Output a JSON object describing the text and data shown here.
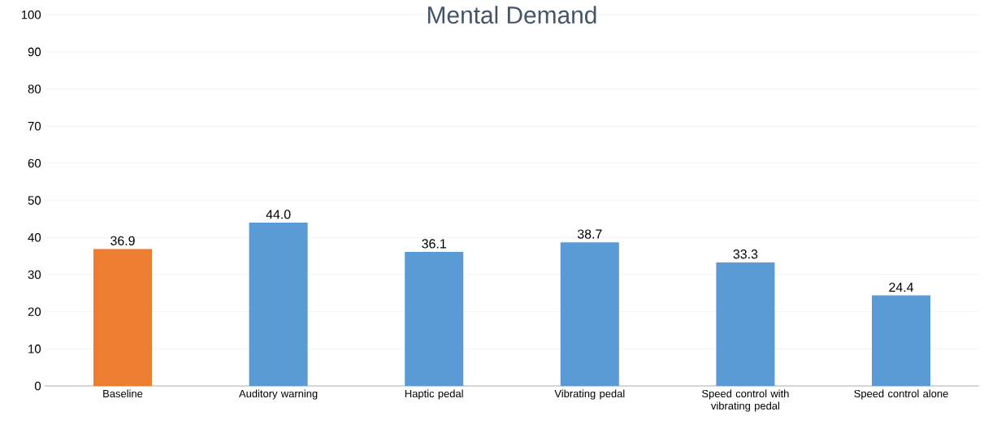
{
  "chart_data": {
    "type": "bar",
    "title": "Mental Demand",
    "categories": [
      "Baseline",
      "Auditory warning",
      "Haptic pedal",
      "Vibrating pedal",
      "Speed control with vibrating pedal",
      "Speed control alone"
    ],
    "values": [
      36.9,
      44.0,
      36.1,
      38.7,
      33.3,
      24.4
    ],
    "value_labels": [
      "36.9",
      "44.0",
      "36.1",
      "38.7",
      "33.3",
      "24.4"
    ],
    "colors": [
      "#ed7d31",
      "#5b9bd5",
      "#5b9bd5",
      "#5b9bd5",
      "#5b9bd5",
      "#5b9bd5"
    ],
    "ylim": [
      0,
      100
    ],
    "yticks": [
      0,
      10,
      20,
      30,
      40,
      50,
      60,
      70,
      80,
      90,
      100
    ],
    "grid": "y"
  }
}
